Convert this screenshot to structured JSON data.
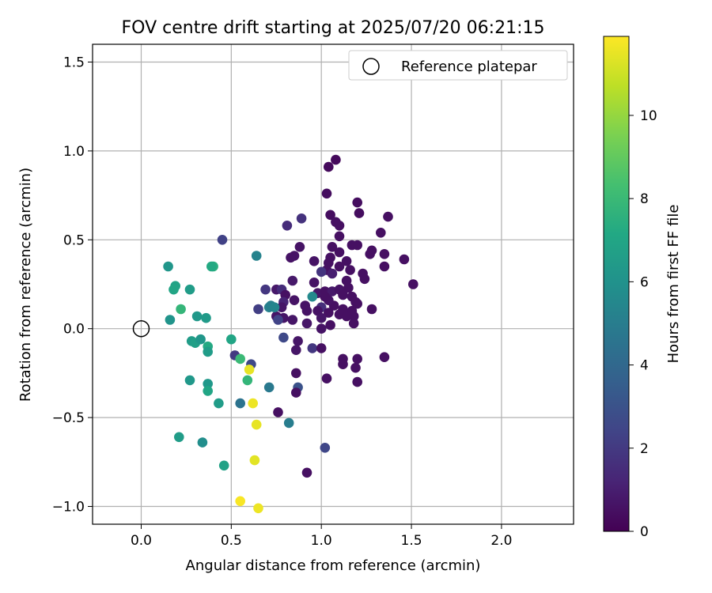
{
  "chart_data": {
    "type": "scatter",
    "title": "FOV centre drift starting at 2025/07/20 06:21:15",
    "xlabel": "Angular distance from reference (arcmin)",
    "ylabel": "Rotation from reference (arcmin)",
    "xlim": [
      -0.27,
      2.4
    ],
    "ylim": [
      -1.1,
      1.6
    ],
    "x_ticks": [
      0.0,
      0.5,
      1.0,
      1.5,
      2.0
    ],
    "x_tick_labels": [
      "0.0",
      "0.5",
      "1.0",
      "1.5",
      "2.0"
    ],
    "y_ticks": [
      -1.0,
      -0.5,
      0.0,
      0.5,
      1.0,
      1.5
    ],
    "y_tick_labels": [
      "−1.0",
      "−0.5",
      "0.0",
      "0.5",
      "1.0",
      "1.5"
    ],
    "grid": true,
    "legend": {
      "placement": "top-right",
      "entries": [
        "Reference platepar"
      ]
    },
    "reference_point": {
      "x": 0.0,
      "y": 0.0
    },
    "colorbar": {
      "label": "Hours from first FF file",
      "colormap": "viridis",
      "range": [
        0,
        11.9
      ],
      "ticks": [
        0,
        2,
        4,
        6,
        8,
        10
      ],
      "tick_labels": [
        "0",
        "2",
        "4",
        "6",
        "8",
        "10"
      ]
    },
    "series": [
      {
        "points": [
          [
            1.08,
            0.95,
            0.3
          ],
          [
            1.04,
            0.91,
            0.3
          ],
          [
            1.03,
            0.76,
            0.4
          ],
          [
            1.2,
            0.71,
            0.4
          ],
          [
            1.05,
            0.64,
            0.4
          ],
          [
            1.21,
            0.65,
            0.4
          ],
          [
            1.37,
            0.63,
            0.5
          ],
          [
            1.08,
            0.6,
            0.5
          ],
          [
            1.1,
            0.58,
            0.5
          ],
          [
            0.81,
            0.58,
            1.5
          ],
          [
            0.89,
            0.62,
            1.7
          ],
          [
            1.33,
            0.54,
            0.5
          ],
          [
            1.1,
            0.52,
            0.5
          ],
          [
            1.17,
            0.47,
            0.5
          ],
          [
            1.2,
            0.47,
            0.5
          ],
          [
            1.06,
            0.46,
            0.5
          ],
          [
            1.28,
            0.44,
            0.5
          ],
          [
            1.27,
            0.42,
            0.5
          ],
          [
            1.35,
            0.42,
            0.5
          ],
          [
            1.46,
            0.39,
            0.5
          ],
          [
            0.88,
            0.46,
            0.6
          ],
          [
            0.85,
            0.41,
            0.6
          ],
          [
            0.83,
            0.4,
            0.6
          ],
          [
            0.96,
            0.38,
            0.6
          ],
          [
            1.05,
            0.4,
            0.5
          ],
          [
            1.1,
            0.43,
            0.5
          ],
          [
            1.14,
            0.38,
            0.5
          ],
          [
            1.04,
            0.37,
            0.5
          ],
          [
            1.03,
            0.33,
            0.5
          ],
          [
            1.1,
            0.35,
            0.5
          ],
          [
            1.16,
            0.33,
            0.5
          ],
          [
            1.35,
            0.35,
            0.5
          ],
          [
            1.23,
            0.31,
            0.5
          ],
          [
            1.24,
            0.28,
            0.5
          ],
          [
            1.51,
            0.25,
            0.5
          ],
          [
            1.0,
            0.32,
            1.8
          ],
          [
            1.06,
            0.31,
            1.0
          ],
          [
            0.96,
            0.26,
            0.6
          ],
          [
            0.84,
            0.27,
            0.8
          ],
          [
            0.75,
            0.22,
            0.8
          ],
          [
            0.78,
            0.22,
            1.5
          ],
          [
            0.8,
            0.19,
            0.5
          ],
          [
            0.85,
            0.16,
            0.6
          ],
          [
            0.91,
            0.13,
            0.6
          ],
          [
            0.92,
            0.1,
            0.6
          ],
          [
            0.98,
            0.2,
            0.7
          ],
          [
            1.02,
            0.21,
            0.5
          ],
          [
            1.06,
            0.21,
            0.8
          ],
          [
            1.1,
            0.22,
            0.6
          ],
          [
            1.12,
            0.19,
            0.5
          ],
          [
            1.15,
            0.23,
            0.5
          ],
          [
            1.17,
            0.18,
            0.5
          ],
          [
            1.19,
            0.15,
            0.5
          ],
          [
            1.2,
            0.14,
            0.5
          ],
          [
            1.17,
            0.1,
            0.5
          ],
          [
            1.12,
            0.11,
            0.5
          ],
          [
            1.07,
            0.13,
            0.5
          ],
          [
            1.04,
            0.16,
            0.6
          ],
          [
            1.28,
            0.11,
            0.5
          ],
          [
            1.14,
            0.27,
            0.5
          ],
          [
            1.02,
            0.18,
            0.5
          ],
          [
            1.0,
            0.12,
            1.6
          ],
          [
            0.98,
            0.1,
            0.6
          ],
          [
            1.04,
            0.09,
            0.5
          ],
          [
            1.1,
            0.08,
            0.5
          ],
          [
            1.14,
            0.07,
            0.5
          ],
          [
            1.18,
            0.07,
            0.5
          ],
          [
            1.18,
            0.03,
            0.5
          ],
          [
            1.05,
            0.02,
            0.5
          ],
          [
            0.79,
            0.15,
            1.2
          ],
          [
            0.78,
            0.12,
            0.7
          ],
          [
            0.75,
            0.07,
            0.7
          ],
          [
            0.79,
            0.06,
            0.7
          ],
          [
            0.84,
            0.05,
            0.7
          ],
          [
            0.92,
            0.03,
            0.7
          ],
          [
            1.0,
            0.06,
            0.7
          ],
          [
            1.0,
            0.0,
            0.6
          ],
          [
            0.76,
            0.05,
            2.4
          ],
          [
            0.69,
            0.22,
            1.9
          ],
          [
            0.65,
            0.11,
            2.2
          ],
          [
            0.71,
            0.12,
            5.2
          ],
          [
            0.72,
            0.13,
            5.1
          ],
          [
            0.74,
            0.12,
            5.4
          ],
          [
            0.95,
            0.18,
            5.6
          ],
          [
            0.45,
            0.5,
            2.3
          ],
          [
            0.64,
            0.41,
            5.3
          ],
          [
            0.79,
            -0.05,
            2.6
          ],
          [
            0.87,
            -0.07,
            0.7
          ],
          [
            0.95,
            -0.11,
            1.9
          ],
          [
            0.86,
            -0.12,
            0.7
          ],
          [
            1.0,
            -0.11,
            0.5
          ],
          [
            1.12,
            -0.17,
            0.5
          ],
          [
            1.2,
            -0.17,
            0.5
          ],
          [
            1.12,
            -0.2,
            0.5
          ],
          [
            1.35,
            -0.16,
            0.5
          ],
          [
            1.19,
            -0.22,
            0.5
          ],
          [
            0.86,
            -0.25,
            0.5
          ],
          [
            1.03,
            -0.28,
            0.5
          ],
          [
            1.2,
            -0.3,
            0.5
          ],
          [
            0.87,
            -0.33,
            3.0
          ],
          [
            0.86,
            -0.36,
            0.5
          ],
          [
            0.76,
            -0.47,
            0.5
          ],
          [
            0.82,
            -0.53,
            5.0
          ],
          [
            1.02,
            -0.67,
            2.5
          ],
          [
            0.92,
            -0.81,
            0.5
          ],
          [
            0.15,
            0.35,
            6.2
          ],
          [
            0.19,
            0.24,
            6.9
          ],
          [
            0.18,
            0.22,
            7.0
          ],
          [
            0.27,
            0.22,
            6.5
          ],
          [
            0.4,
            0.35,
            7.5
          ],
          [
            0.39,
            0.35,
            7.2
          ],
          [
            0.22,
            0.11,
            7.8
          ],
          [
            0.16,
            0.05,
            6.1
          ],
          [
            0.31,
            0.07,
            6.3
          ],
          [
            0.36,
            0.06,
            6.4
          ],
          [
            0.28,
            -0.07,
            6.5
          ],
          [
            0.3,
            -0.08,
            6.7
          ],
          [
            0.33,
            -0.06,
            6.2
          ],
          [
            0.37,
            -0.1,
            7.2
          ],
          [
            0.37,
            -0.13,
            6.5
          ],
          [
            0.5,
            -0.06,
            7.0
          ],
          [
            0.52,
            -0.15,
            2.0
          ],
          [
            0.55,
            -0.17,
            8.0
          ],
          [
            0.61,
            -0.2,
            2.6
          ],
          [
            0.6,
            -0.23,
            11.5
          ],
          [
            0.59,
            -0.29,
            7.8
          ],
          [
            0.27,
            -0.29,
            6.3
          ],
          [
            0.37,
            -0.31,
            6.3
          ],
          [
            0.37,
            -0.35,
            7.0
          ],
          [
            0.43,
            -0.42,
            6.5
          ],
          [
            0.55,
            -0.42,
            4.5
          ],
          [
            0.71,
            -0.33,
            4.8
          ],
          [
            0.62,
            -0.42,
            11.6
          ],
          [
            0.64,
            -0.54,
            11.5
          ],
          [
            0.21,
            -0.61,
            6.5
          ],
          [
            0.34,
            -0.64,
            5.8
          ],
          [
            0.46,
            -0.77,
            6.8
          ],
          [
            0.63,
            -0.74,
            11.4
          ],
          [
            0.55,
            -0.97,
            11.8
          ],
          [
            0.65,
            -1.01,
            11.6
          ]
        ]
      }
    ]
  }
}
